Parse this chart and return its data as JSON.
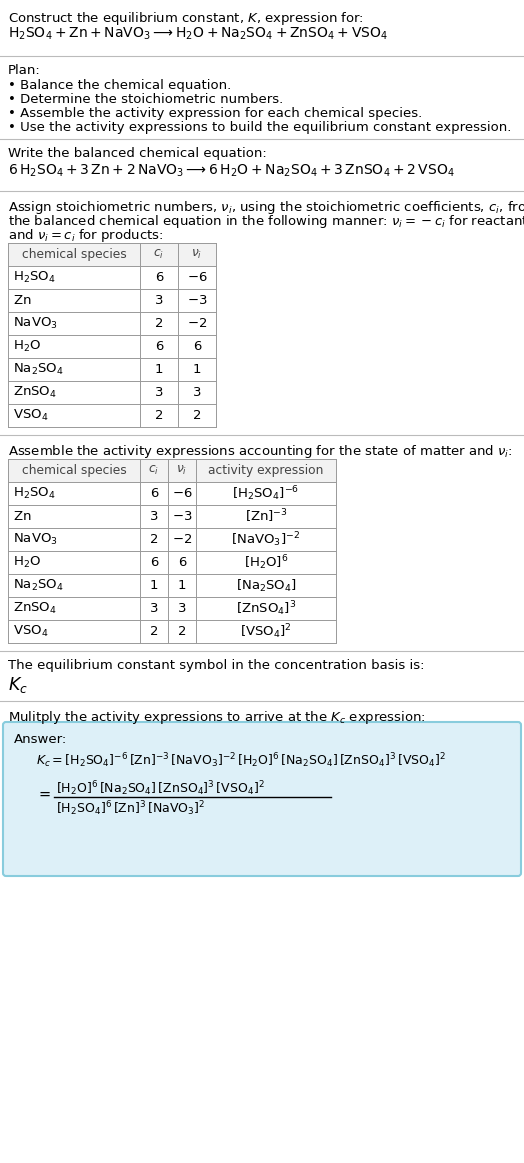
{
  "title_line1": "Construct the equilibrium constant, $K$, expression for:",
  "title_line2": "$\\mathrm{H_2SO_4 + Zn + NaVO_3 \\longrightarrow H_2O + Na_2SO_4 + ZnSO_4 + VSO_4}$",
  "plan_title": "Plan:",
  "plan_bullets": [
    "Balance the chemical equation.",
    "Determine the stoichiometric numbers.",
    "Assemble the activity expression for each chemical species.",
    "Use the activity expressions to build the equilibrium constant expression."
  ],
  "balanced_eq_label": "Write the balanced chemical equation:",
  "balanced_eq": "$\\mathrm{6\\,H_2SO_4 + 3\\,Zn + 2\\,NaVO_3 \\longrightarrow 6\\,H_2O + Na_2SO_4 + 3\\,ZnSO_4 + 2\\,VSO_4}$",
  "stoich_line1": "Assign stoichiometric numbers, $\\nu_i$, using the stoichiometric coefficients, $c_i$, from",
  "stoich_line2": "the balanced chemical equation in the following manner: $\\nu_i = -c_i$ for reactants",
  "stoich_line3": "and $\\nu_i = c_i$ for products:",
  "table1_headers": [
    "chemical species",
    "$c_i$",
    "$\\nu_i$"
  ],
  "table1_data": [
    [
      "$\\mathrm{H_2SO_4}$",
      "6",
      "$-6$"
    ],
    [
      "$\\mathrm{Zn}$",
      "3",
      "$-3$"
    ],
    [
      "$\\mathrm{NaVO_3}$",
      "2",
      "$-2$"
    ],
    [
      "$\\mathrm{H_2O}$",
      "6",
      "6"
    ],
    [
      "$\\mathrm{Na_2SO_4}$",
      "1",
      "1"
    ],
    [
      "$\\mathrm{ZnSO_4}$",
      "3",
      "3"
    ],
    [
      "$\\mathrm{VSO_4}$",
      "2",
      "2"
    ]
  ],
  "assemble_text": "Assemble the activity expressions accounting for the state of matter and $\\nu_i$:",
  "table2_headers": [
    "chemical species",
    "$c_i$",
    "$\\nu_i$",
    "activity expression"
  ],
  "table2_data": [
    [
      "$\\mathrm{H_2SO_4}$",
      "6",
      "$-6$",
      "$[\\mathrm{H_2SO_4}]^{-6}$"
    ],
    [
      "$\\mathrm{Zn}$",
      "3",
      "$-3$",
      "$[\\mathrm{Zn}]^{-3}$"
    ],
    [
      "$\\mathrm{NaVO_3}$",
      "2",
      "$-2$",
      "$[\\mathrm{NaVO_3}]^{-2}$"
    ],
    [
      "$\\mathrm{H_2O}$",
      "6",
      "6",
      "$[\\mathrm{H_2O}]^{6}$"
    ],
    [
      "$\\mathrm{Na_2SO_4}$",
      "1",
      "1",
      "$[\\mathrm{Na_2SO_4}]$"
    ],
    [
      "$\\mathrm{ZnSO_4}$",
      "3",
      "3",
      "$[\\mathrm{ZnSO_4}]^{3}$"
    ],
    [
      "$\\mathrm{VSO_4}$",
      "2",
      "2",
      "$[\\mathrm{VSO_4}]^{2}$"
    ]
  ],
  "kc_symbol_text": "The equilibrium constant symbol in the concentration basis is:",
  "kc_symbol": "$K_c$",
  "multiply_text": "Mulitply the activity expressions to arrive at the $K_c$ expression:",
  "answer_label": "Answer:",
  "answer_line1": "$K_c = [\\mathrm{H_2SO_4}]^{-6}\\,[\\mathrm{Zn}]^{-3}\\,[\\mathrm{NaVO_3}]^{-2}\\,[\\mathrm{H_2O}]^{6}\\,[\\mathrm{Na_2SO_4}]\\,[\\mathrm{ZnSO_4}]^{3}\\,[\\mathrm{VSO_4}]^{2}$",
  "answer_line2_num": "$[\\mathrm{H_2O}]^{6}\\,[\\mathrm{Na_2SO_4}]\\,[\\mathrm{ZnSO_4}]^{3}\\,[\\mathrm{VSO_4}]^{2}$",
  "answer_line2_den": "$[\\mathrm{H_2SO_4}]^{6}\\,[\\mathrm{Zn}]^{3}\\,[\\mathrm{NaVO_3}]^{2}$",
  "bg_color": "#ffffff",
  "answer_box_color": "#ddf0f8",
  "answer_box_border": "#88ccdd",
  "text_color": "#000000",
  "font_size": 9.5,
  "header_font_size": 8.8
}
